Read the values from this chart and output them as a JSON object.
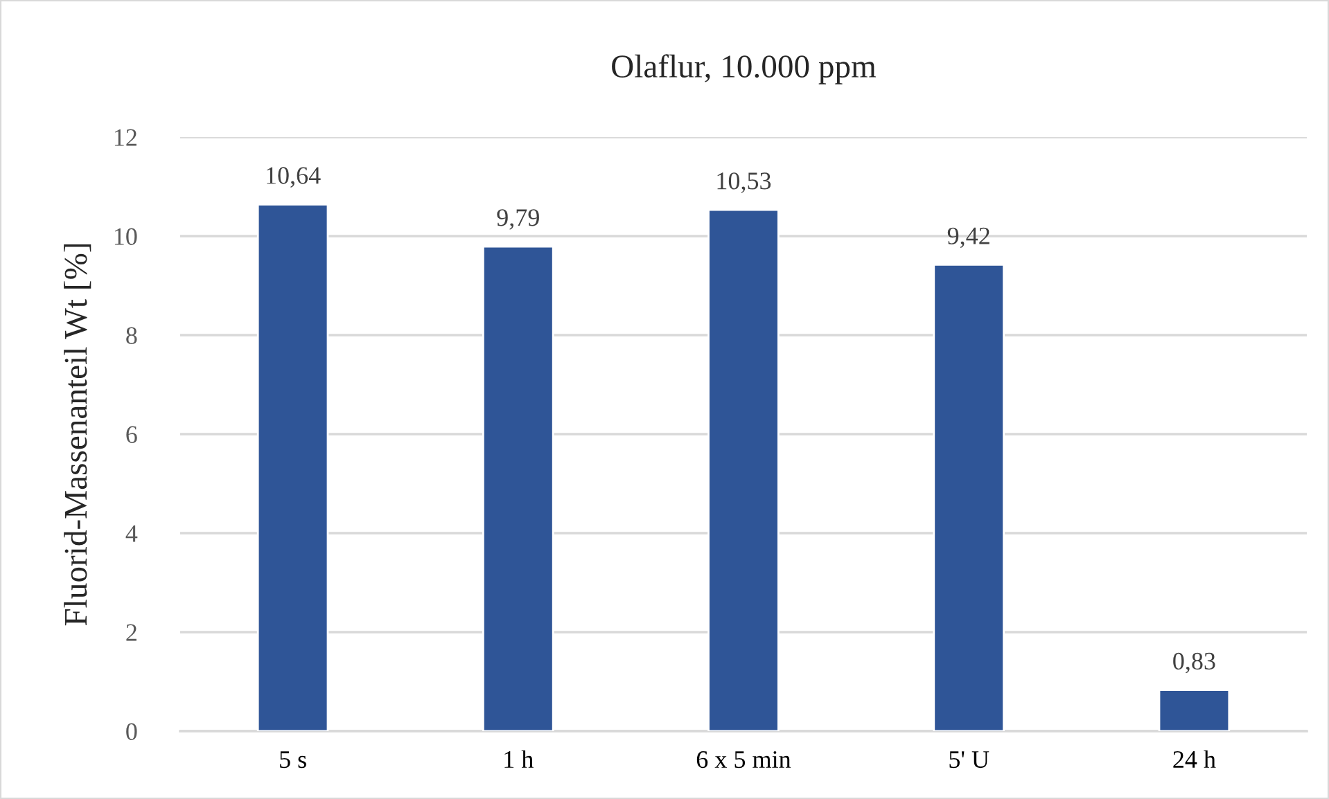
{
  "chart_data": {
    "type": "bar",
    "title": "Olaflur, 10.000 ppm",
    "ylabel": "Fluorid-Massenanteil Wt [%]",
    "categories": [
      "5 s",
      "1 h",
      "6 x 5 min",
      "5' U",
      "24 h"
    ],
    "values": [
      10.64,
      9.79,
      10.53,
      9.42,
      0.83
    ],
    "value_labels": [
      "10,64",
      "9,79",
      "10,53",
      "9,42",
      "0,83"
    ],
    "color": "#2f5597",
    "ylim": [
      0,
      12
    ],
    "yticks": [
      0,
      2,
      4,
      6,
      8,
      10,
      12
    ],
    "grid": "y",
    "legend": false
  }
}
